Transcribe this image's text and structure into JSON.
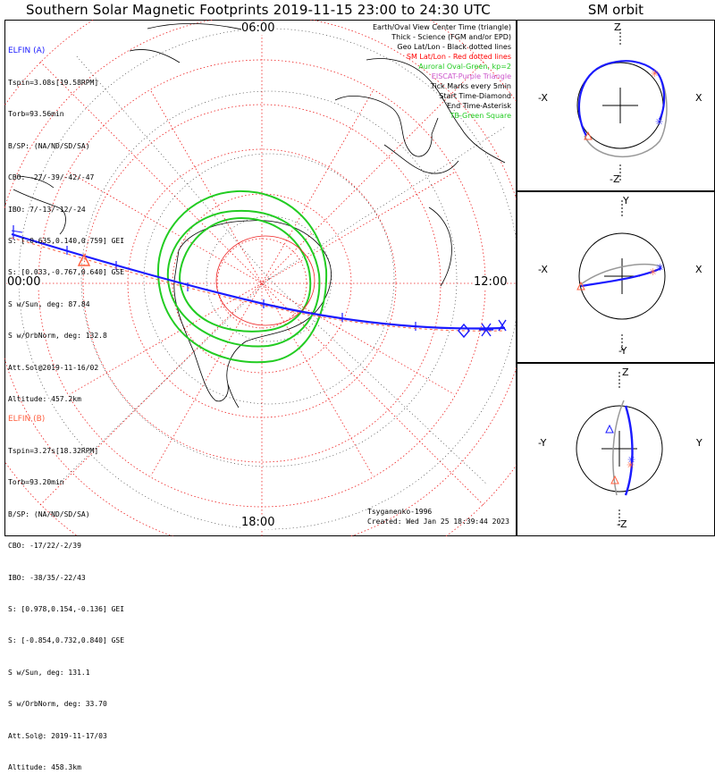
{
  "title": "Southern Solar Magnetic Footprints 2019-11-15 23:00 to 24:30 UTC",
  "sm_title": "SM orbit",
  "time_labels": {
    "top": "06:00",
    "left": "00:00",
    "right": "12:00",
    "bottom": "18:00"
  },
  "elfin_a": {
    "name": "ELFIN (A)",
    "color": "#1a1aff",
    "lines": [
      "Tspin=3.08s[19.58RPM]",
      "Torb=93.56min",
      "B/SP: (NA/ND/SD/SA)",
      "CBO: -27/-39/-42/-47",
      "IBO: 7/-13/-12/-24",
      "S: [-0.635,0.140,0.759] GEI",
      "S: [0.033,-0.767,0.640] GSE",
      "S w/Sun, deg: 87.84",
      "S w/OrbNorm, deg: 132.8",
      "Att.Sol@2019-11-16/02",
      "Altitude: 457.2km"
    ]
  },
  "elfin_b": {
    "name": "ELFIN (B)",
    "color": "#ff6040",
    "lines": [
      "Tspin=3.27s[18.32RPM]",
      "Torb=93.20min",
      "B/SP: (NA/ND/SD/SA)",
      "CBO: -17/22/-2/39",
      "IBO: -38/35/-22/43",
      "S: [0.978,0.154,-0.136] GEI",
      "S: [-0.854,0.732,0.840] GSE",
      "S w/Sun, deg: 131.1",
      "S w/OrbNorm, deg: 33.70",
      "Att.Sol@: 2019-11-17/03",
      "Altitude: 458.3km"
    ]
  },
  "legend": [
    {
      "text": "Earth/Oval View Center Time (triangle)",
      "color": "#000000"
    },
    {
      "text": "Thick - Science (FGM and/or EPD)",
      "color": "#000000"
    },
    {
      "text": "Geo Lat/Lon - Black dotted lines",
      "color": "#000000"
    },
    {
      "text": "SM Lat/Lon - Red dotted lines",
      "color": "#ff0000"
    },
    {
      "text": "Auroral Oval-Green, kp=2",
      "color": "#22cc22"
    },
    {
      "text": "EISCAT-Purple Triangle",
      "color": "#cc55cc"
    },
    {
      "text": "Tick Marks every 5min",
      "color": "#000000"
    },
    {
      "text": "Start Time-Diamond",
      "color": "#000000"
    },
    {
      "text": "End Time-Asterisk",
      "color": "#000000"
    },
    {
      "text": "TB-Green Square",
      "color": "#22cc22"
    }
  ],
  "credit": "Tsyganenko-1996",
  "created": "Created: Wed Jan 25 18:39:44 2023",
  "panels": {
    "p1": {
      "top": "Z",
      "bottom": "-Z",
      "left": "-X",
      "right": "X"
    },
    "p2": {
      "top": "Y",
      "bottom": "-Y",
      "left": "-X",
      "right": "X"
    },
    "p3": {
      "top": "Z",
      "bottom": "-Z",
      "left": "-Y",
      "right": "Y"
    }
  }
}
